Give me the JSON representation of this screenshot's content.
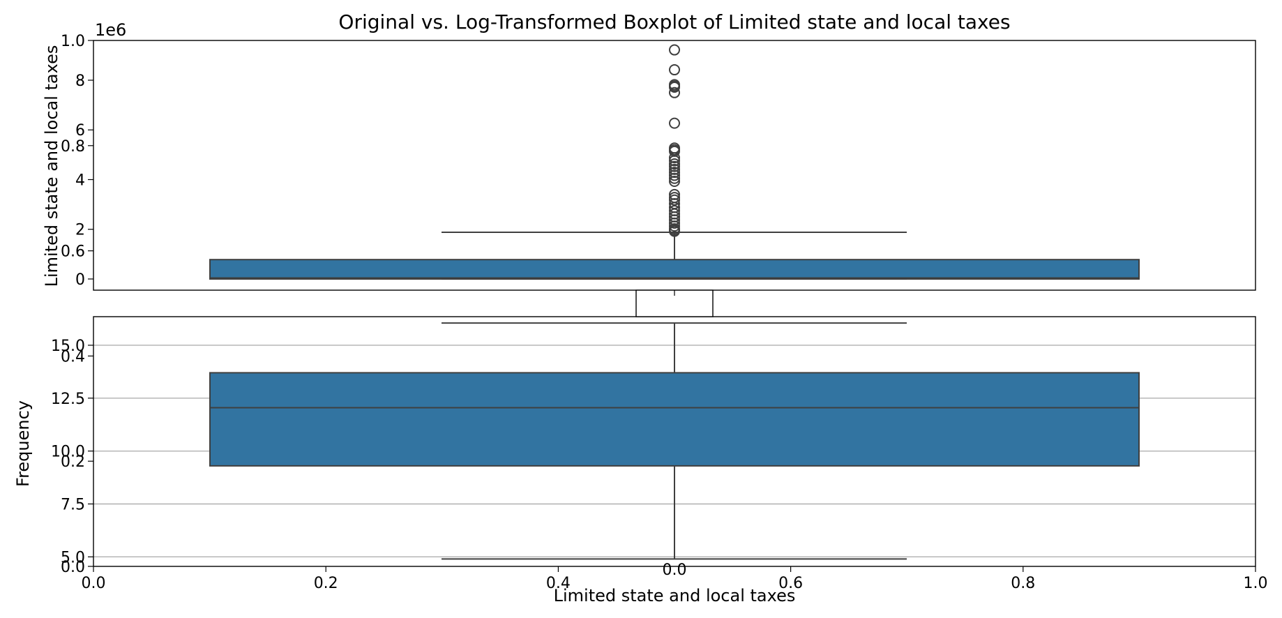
{
  "chart_data": {
    "title": "Original vs. Log-Transformed Boxplot of Limited state and local taxes",
    "outer_axes": {
      "xlabel": "Limited state and local taxes",
      "ylabel": "Frequency",
      "xlim": [
        0,
        1
      ],
      "ylim": [
        0,
        1
      ],
      "xticks": [
        "0.0",
        "0.2",
        "0.4",
        "0.6",
        "0.8",
        "1.0"
      ],
      "yticks": [
        "0.0",
        "0.2",
        "0.4",
        "0.6",
        "0.8",
        "1.0"
      ]
    },
    "subplots": [
      {
        "type": "box",
        "name": "original",
        "ylabel": "Limited state and local taxes",
        "offset_label": "1e6",
        "ylim": [
          -0.45,
          9.6
        ],
        "yticks": [
          0,
          2,
          4,
          6,
          8
        ],
        "ytick_labels": [
          "0",
          "2",
          "4",
          "6",
          "8"
        ],
        "grid": false,
        "box_color": "#3274a1",
        "stats": {
          "whisker_low": 0,
          "q1": 0,
          "median": 0.04,
          "q3": 0.78,
          "whisker_high": 1.88
        },
        "outliers": [
          9.22,
          8.42,
          7.82,
          7.76,
          7.72,
          7.5,
          6.27,
          5.27,
          5.2,
          5.14,
          4.88,
          4.76,
          4.63,
          4.53,
          4.41,
          4.29,
          4.17,
          4.05,
          3.93,
          3.4,
          3.28,
          3.18,
          3.03,
          2.88,
          2.75,
          2.62,
          2.5,
          2.38,
          2.25,
          2.13,
          2.02,
          1.96,
          1.92
        ]
      },
      {
        "type": "box",
        "name": "log-transformed",
        "ylim": [
          4.55,
          16.35
        ],
        "yticks": [
          5,
          7.5,
          10,
          12.5,
          15
        ],
        "ytick_labels": [
          "5.0",
          "7.5",
          "10.0",
          "12.5",
          "15.0"
        ],
        "grid": true,
        "box_color": "#3274a1",
        "stats": {
          "whisker_low": 4.9,
          "q1": 9.3,
          "median": 12.05,
          "q3": 13.7,
          "whisker_high": 16.05
        }
      }
    ],
    "inset_xticks": [
      "0.0"
    ]
  }
}
